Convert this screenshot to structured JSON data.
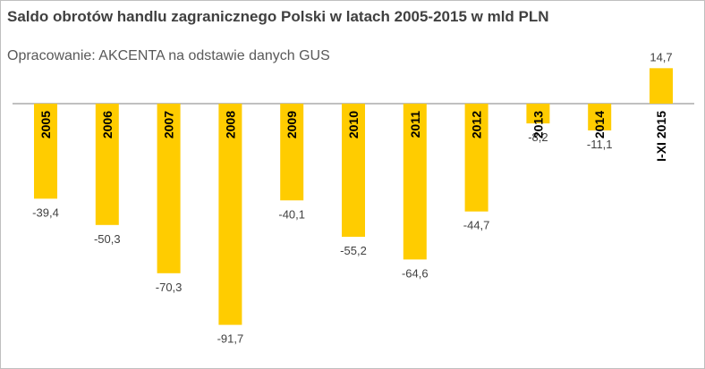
{
  "chart_data": {
    "type": "bar",
    "title": "Saldo obrotów handlu zagranicznego Polski w latach 2005-2015 w mld PLN",
    "subtitle": "Opracowanie: AKCENTA na odstawie danych GUS",
    "categories": [
      "2005",
      "2006",
      "2007",
      "2008",
      "2009",
      "2010",
      "2011",
      "2012",
      "2013",
      "2014",
      "I-XI 2015"
    ],
    "values": [
      -39.4,
      -50.3,
      -70.3,
      -91.7,
      -40.1,
      -55.2,
      -64.6,
      -44.7,
      -8.2,
      -11.1,
      14.7
    ],
    "value_labels": [
      "-39,4",
      "-50,3",
      "-70,3",
      "-91,7",
      "-40,1",
      "-55,2",
      "-64,6",
      "-44,7",
      "-8,2",
      "-11,1",
      "14,7"
    ],
    "bar_color": "#FFCC00",
    "axis_color": "#808080",
    "xlabel": "",
    "ylabel": "",
    "ylim": [
      -100,
      20
    ],
    "grid": false,
    "legend": "none"
  }
}
